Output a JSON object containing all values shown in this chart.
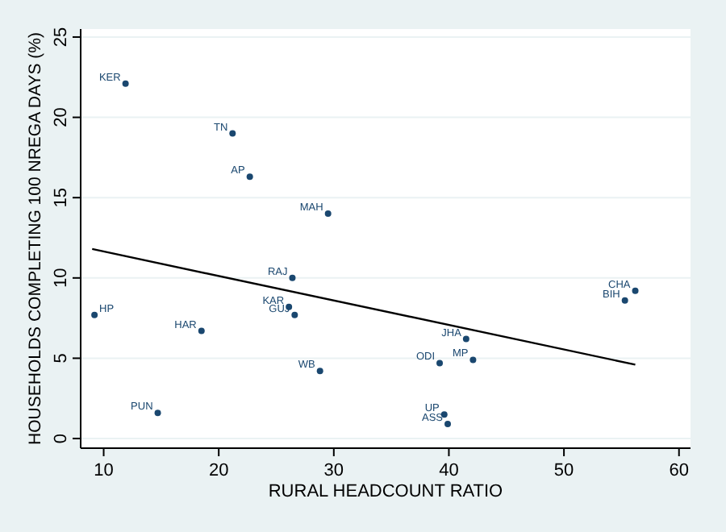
{
  "chart_data": {
    "type": "scatter",
    "xlabel": "RURAL HEADCOUNT RATIO",
    "ylabel": "HOUSEHOLDS COMPLETING 100 NREGA DAYS (%)",
    "xlim": [
      8,
      61
    ],
    "ylim": [
      -0.6,
      25.5
    ],
    "xticks": [
      10,
      20,
      30,
      40,
      50,
      60
    ],
    "yticks": [
      0,
      5,
      10,
      15,
      20,
      25
    ],
    "grid": "y",
    "series": [
      {
        "marker": "circle",
        "color": "#1a476f",
        "x": [
          11.9,
          21.2,
          22.7,
          29.5,
          26.4,
          26.1,
          26.6,
          9.2,
          18.5,
          28.8,
          14.7,
          56.2,
          55.3,
          41.5,
          42.1,
          39.2,
          39.6,
          39.9
        ],
        "values": [
          22.1,
          19.0,
          16.3,
          14.0,
          10.0,
          8.2,
          7.7,
          7.7,
          6.7,
          4.2,
          1.6,
          9.2,
          8.6,
          6.2,
          4.9,
          4.7,
          1.5,
          0.9
        ]
      },
      {
        "type": "line",
        "marker": "none",
        "color": "#000000",
        "x": [
          9,
          56.2
        ],
        "values": [
          11.8,
          4.6
        ]
      }
    ],
    "annotations": [
      {
        "text": "KER",
        "x": 11.9,
        "y": 22.1
      },
      {
        "text": "TN",
        "x": 21.2,
        "y": 19.0
      },
      {
        "text": "AP",
        "x": 22.7,
        "y": 16.3
      },
      {
        "text": "MAH",
        "x": 29.5,
        "y": 14.0
      },
      {
        "text": "RAJ",
        "x": 26.4,
        "y": 10.0
      },
      {
        "text": "KAR",
        "x": 26.1,
        "y": 8.2
      },
      {
        "text": "GUJ",
        "x": 26.6,
        "y": 7.7
      },
      {
        "text": "HP",
        "x": 9.2,
        "y": 7.7
      },
      {
        "text": "HAR",
        "x": 18.5,
        "y": 6.7
      },
      {
        "text": "WB",
        "x": 28.8,
        "y": 4.2
      },
      {
        "text": "PUN",
        "x": 14.7,
        "y": 1.6
      },
      {
        "text": "CHA",
        "x": 56.2,
        "y": 9.2
      },
      {
        "text": "BIH",
        "x": 55.3,
        "y": 8.6
      },
      {
        "text": "JHA",
        "x": 41.5,
        "y": 6.2
      },
      {
        "text": "MP",
        "x": 42.1,
        "y": 4.9
      },
      {
        "text": "ODI",
        "x": 39.2,
        "y": 4.7
      },
      {
        "text": "UP",
        "x": 39.6,
        "y": 1.5
      },
      {
        "text": "ASS",
        "x": 39.9,
        "y": 0.9
      }
    ]
  }
}
